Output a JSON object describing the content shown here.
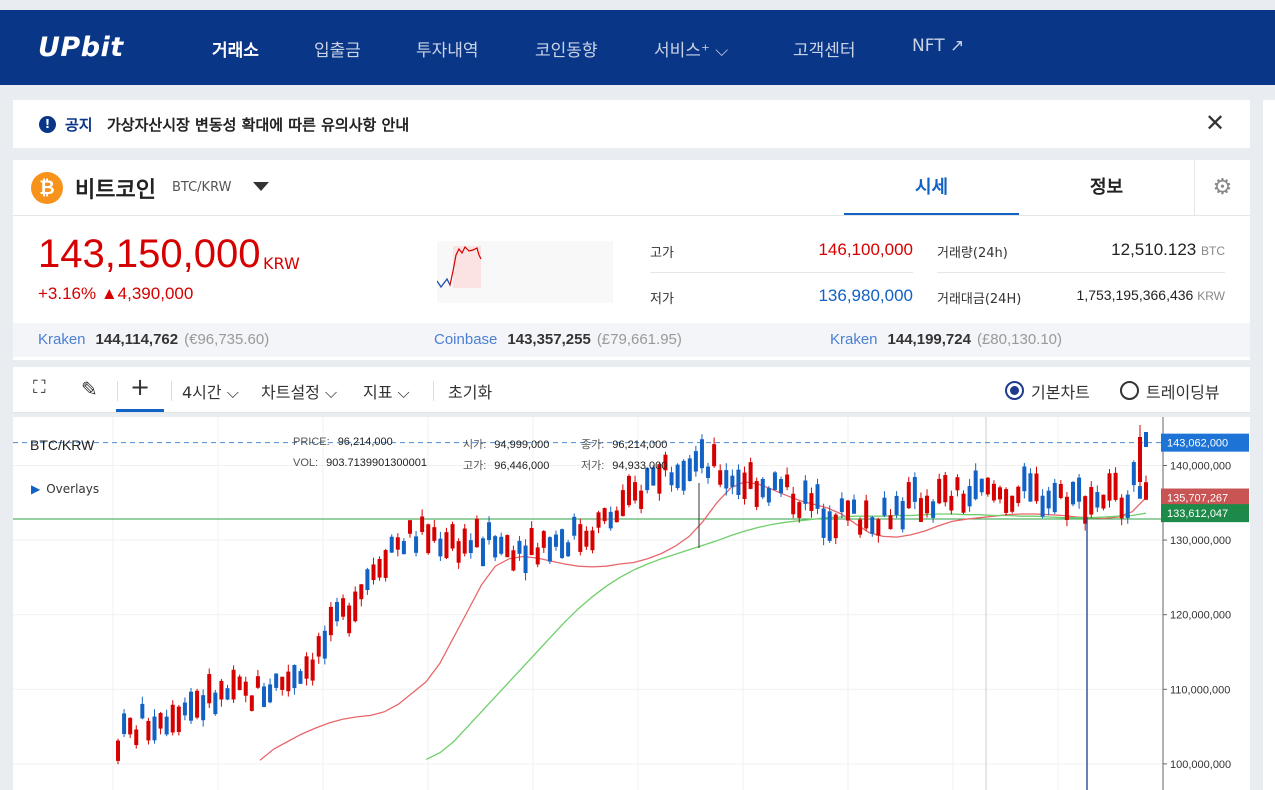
{
  "header": {
    "logo": "UPbit",
    "nav": [
      {
        "label": "거래소",
        "active": true
      },
      {
        "label": "입출금"
      },
      {
        "label": "투자내역"
      },
      {
        "label": "코인동향"
      },
      {
        "label": "서비스⁺ ⌵"
      },
      {
        "label": "고객센터"
      },
      {
        "label": "NFT ↗"
      }
    ]
  },
  "notice": {
    "tag": "공지",
    "text": "가상자산시장 변동성 확대에 따른 유의사항 안내",
    "icon": "exclamation-icon"
  },
  "coin": {
    "name": "비트코인",
    "pair": "BTC/KRW",
    "tabs": [
      "시세",
      "정보"
    ],
    "price": "143,150,000",
    "price_unit": "KRW",
    "change": "+3.16%  ▲4,390,000",
    "high_label": "고가",
    "high": "146,100,000",
    "low_label": "저가",
    "low": "136,980,000",
    "volume_label": "거래량(24h)",
    "volume": "12,510.123",
    "volume_unit": "BTC",
    "value_label": "거래대금(24H)",
    "value": "1,753,195,366,436",
    "value_unit": "KRW"
  },
  "exchanges": [
    {
      "name": "Kraken",
      "price": "144,114,762",
      "alt": "(€96,735.60)"
    },
    {
      "name": "Coinbase",
      "price": "143,357,255",
      "alt": "(£79,661.95)"
    },
    {
      "name": "Kraken",
      "price": "144,199,724",
      "alt": "(£80,130.10)"
    }
  ],
  "toolbar": {
    "interval": "4시간 ⌵",
    "chart_settings": "차트설정 ⌵",
    "indicators": "지표 ⌵",
    "reset": "초기화",
    "view_basic": "기본차트",
    "view_trading": "트레이딩뷰"
  },
  "chart_info": {
    "pair": "BTC/KRW",
    "price_label": "PRICE:",
    "price": "96,214,000",
    "open_label": "시가:",
    "open": "94,999,000",
    "close_label": "종가:",
    "close": "96,214,000",
    "vol_label": "VOL:",
    "vol": "903.7139901300001",
    "high_label": "고가:",
    "high": "96,446,000",
    "low_label": "저가:",
    "low": "94,933,000",
    "overlays": "Overlays"
  },
  "chart_data": {
    "type": "line",
    "title": "BTC/KRW",
    "xlabel": "",
    "ylabel": "",
    "ylim": [
      96500000,
      146500000
    ],
    "y_ticks": [
      "140,000,000",
      "130,000,000",
      "120,000,000",
      "110,000,000",
      "100,000,000"
    ],
    "y_tick_values": [
      140000000,
      130000000,
      120000000,
      110000000,
      100000000
    ],
    "markers": {
      "current_price": "143,062,000",
      "ma_short_last": "135,707,267",
      "ma_long_last": "133,612,047"
    },
    "series": [
      {
        "values": [
          100500000,
          102000000,
          103000000,
          104000000,
          104800000,
          105500000,
          106000000,
          106300000,
          106500000,
          107000000,
          108000000,
          109500000,
          111000000,
          113500000,
          117000000,
          120500000,
          124000000,
          126500000,
          127500000,
          127800000,
          127600000,
          127200000,
          126800000,
          126500000,
          126400000,
          126500000,
          126800000,
          127000000,
          127500000,
          128200000,
          129200000,
          130500000,
          132500000,
          135000000,
          137000000,
          137800000,
          137500000,
          136800000,
          136000000,
          135300000,
          134800000,
          134300000,
          133500000,
          132200000,
          131000000,
          130500000,
          130400000,
          130700000,
          131200000,
          131900000,
          132500000,
          132800000,
          133000000,
          133200000,
          133400000,
          133500000,
          133500000,
          133400000,
          133300000,
          133100000,
          133000000,
          132900000,
          133100000,
          133800000,
          135700000
        ]
      },
      {
        "values": [
          null,
          null,
          null,
          null,
          null,
          null,
          null,
          null,
          null,
          null,
          null,
          null,
          100600000,
          101500000,
          103000000,
          105000000,
          107000000,
          109000000,
          111000000,
          113000000,
          115000000,
          117000000,
          119000000,
          120800000,
          122400000,
          123800000,
          125000000,
          126000000,
          126800000,
          127500000,
          128100000,
          128700000,
          129300000,
          129900000,
          130600000,
          131200000,
          131700000,
          132100000,
          132400000,
          132600000,
          132800000,
          133000000,
          133100000,
          133200000,
          133200000,
          133200000,
          133300000,
          133300000,
          133400000,
          133500000,
          133500000,
          133400000,
          133400000,
          133300000,
          133300000,
          133200000,
          133200000,
          133100000,
          133000000,
          133000000,
          133000000,
          133100000,
          133200000,
          133300000,
          133600000
        ]
      }
    ]
  },
  "colors": {
    "brand": "#093687",
    "up": "#d60000",
    "down": "#1261c4",
    "ma_short": "#e8676b",
    "ma_long": "#6fcf6b",
    "support_line": "#2ea043"
  }
}
